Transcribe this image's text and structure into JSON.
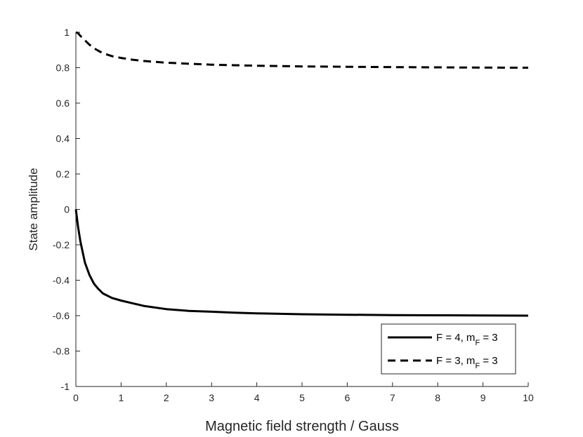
{
  "chart_data": {
    "type": "line",
    "xlabel": "Magnetic field strength / Gauss",
    "ylabel": "State amplitude",
    "xlim": [
      0,
      10
    ],
    "ylim": [
      -1,
      1
    ],
    "x_ticks": [
      "0",
      "1",
      "2",
      "3",
      "4",
      "5",
      "6",
      "7",
      "8",
      "9",
      "10"
    ],
    "y_ticks": [
      "-1",
      "-0.8",
      "-0.6",
      "-0.4",
      "-0.2",
      "0",
      "0.2",
      "0.4",
      "0.6",
      "0.8",
      "1"
    ],
    "grid": false,
    "legend_position": "bottom-right",
    "series": [
      {
        "name_main": "F = 4, m",
        "name_sub": "F",
        "name_tail": " = 3",
        "style": "solid",
        "color": "#000000",
        "x": [
          0,
          0.05,
          0.1,
          0.2,
          0.3,
          0.4,
          0.5,
          0.6,
          0.8,
          1.0,
          1.25,
          1.5,
          2.0,
          2.5,
          3.0,
          3.5,
          4.0,
          5.0,
          6.0,
          7.0,
          8.0,
          9.0,
          10.0
        ],
        "y": [
          0,
          -0.1,
          -0.18,
          -0.3,
          -0.37,
          -0.42,
          -0.45,
          -0.475,
          -0.5,
          -0.515,
          -0.53,
          -0.545,
          -0.563,
          -0.573,
          -0.578,
          -0.583,
          -0.587,
          -0.592,
          -0.595,
          -0.597,
          -0.598,
          -0.599,
          -0.6
        ]
      },
      {
        "name_main": "F = 3, m",
        "name_sub": "F",
        "name_tail": " = 3",
        "style": "dashed",
        "color": "#000000",
        "x": [
          0,
          0.05,
          0.1,
          0.2,
          0.3,
          0.4,
          0.5,
          0.6,
          0.8,
          1.0,
          1.25,
          1.5,
          2.0,
          2.5,
          3.0,
          3.5,
          4.0,
          5.0,
          6.0,
          7.0,
          8.0,
          9.0,
          10.0
        ],
        "y": [
          1.0,
          0.995,
          0.98,
          0.955,
          0.93,
          0.91,
          0.895,
          0.882,
          0.865,
          0.855,
          0.845,
          0.838,
          0.828,
          0.822,
          0.817,
          0.814,
          0.811,
          0.807,
          0.805,
          0.803,
          0.802,
          0.8005,
          0.8
        ]
      }
    ]
  }
}
